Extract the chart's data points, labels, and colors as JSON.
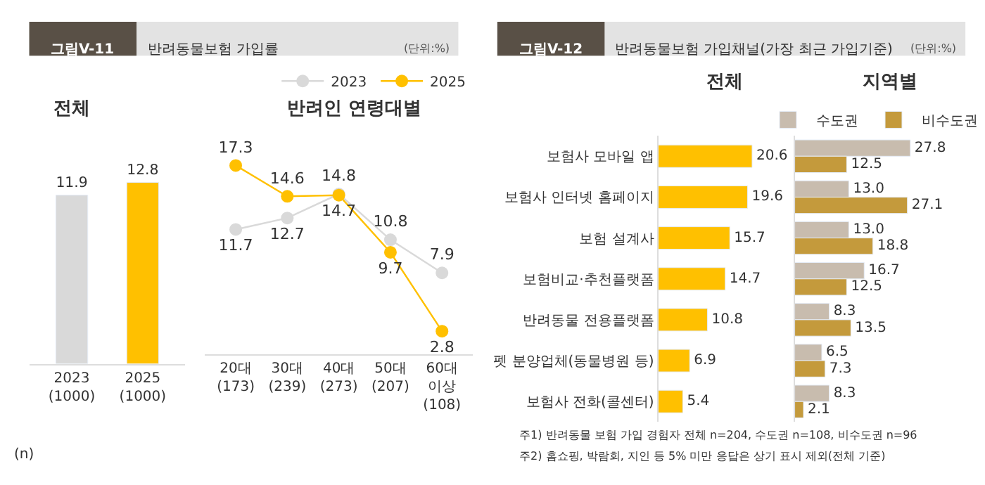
{
  "chart_data": [
    {
      "type": "bar",
      "title": "전체",
      "annotations": [
        "그림V-11",
        "반려동물보험 가입률",
        "(단위:%)",
        "(n)"
      ],
      "categories": [
        "2023\n(1000)",
        "2025\n(1000)"
      ],
      "values": [
        11.9,
        12.8
      ],
      "colors": [
        "#d9d9d9",
        "#ffc000"
      ],
      "data_labels": true
    },
    {
      "type": "line",
      "title": "반려인 연령대별",
      "categories": [
        "20대\n(173)",
        "30대\n(239)",
        "40대\n(273)",
        "50대\n(207)",
        "60대\n이상\n(108)"
      ],
      "series": [
        {
          "name": "2023",
          "color": "#d9d9d9",
          "values": [
            11.7,
            12.7,
            14.8,
            10.8,
            7.9
          ]
        },
        {
          "name": "2025",
          "color": "#ffc000",
          "values": [
            17.3,
            14.6,
            14.7,
            9.7,
            2.8
          ]
        }
      ],
      "marker": "circle",
      "data_labels": true,
      "legend": "top right"
    },
    {
      "type": "bar",
      "orientation": "horizontal",
      "title": "전체",
      "annotations": [
        "그림V-12",
        "반려동물보험 가입채널(가장 최근 가입기준)",
        "(단위:%)",
        "주1) 반려동물 보험 가입 경험자 전체 n=204, 수도권 n=108, 비수도권 n=96",
        "주2) 홈쇼핑, 박람회, 지인 등 5% 미만 응답은 상기 표시 제외(전체 기준)"
      ],
      "categories": [
        "보험사 모바일 앱",
        "보험사 인터넷 홈페이지",
        "보험 설계사",
        "보험비교·추천플랫폼",
        "반려동물 전용플랫폼",
        "펫 분양업체(동물병원 등)",
        "보험사 전화(콜센터)"
      ],
      "values": [
        20.6,
        19.6,
        15.7,
        14.7,
        10.8,
        6.9,
        5.4
      ],
      "color": "#ffc000",
      "data_labels": true
    },
    {
      "type": "bar",
      "orientation": "horizontal",
      "title": "지역별",
      "series": [
        {
          "name": "수도권",
          "color": "#c8bcae",
          "values": [
            27.8,
            13.0,
            13.0,
            16.7,
            8.3,
            6.5,
            8.3
          ],
          "value_labels": [
            "27.8",
            "13.0",
            "13.0",
            "16.7",
            "8.3",
            "6.5",
            "8.3"
          ]
        },
        {
          "name": "비수도권",
          "color": "#c49a3c",
          "values": [
            12.5,
            27.1,
            18.8,
            12.5,
            13.5,
            7.3,
            2.1
          ],
          "value_labels": [
            "12.5",
            "27.1",
            "18.8",
            "12.5",
            "13.5",
            "7.3",
            "2.1"
          ]
        }
      ],
      "data_labels": true,
      "legend": "top",
      "tick_labels": false
    }
  ]
}
